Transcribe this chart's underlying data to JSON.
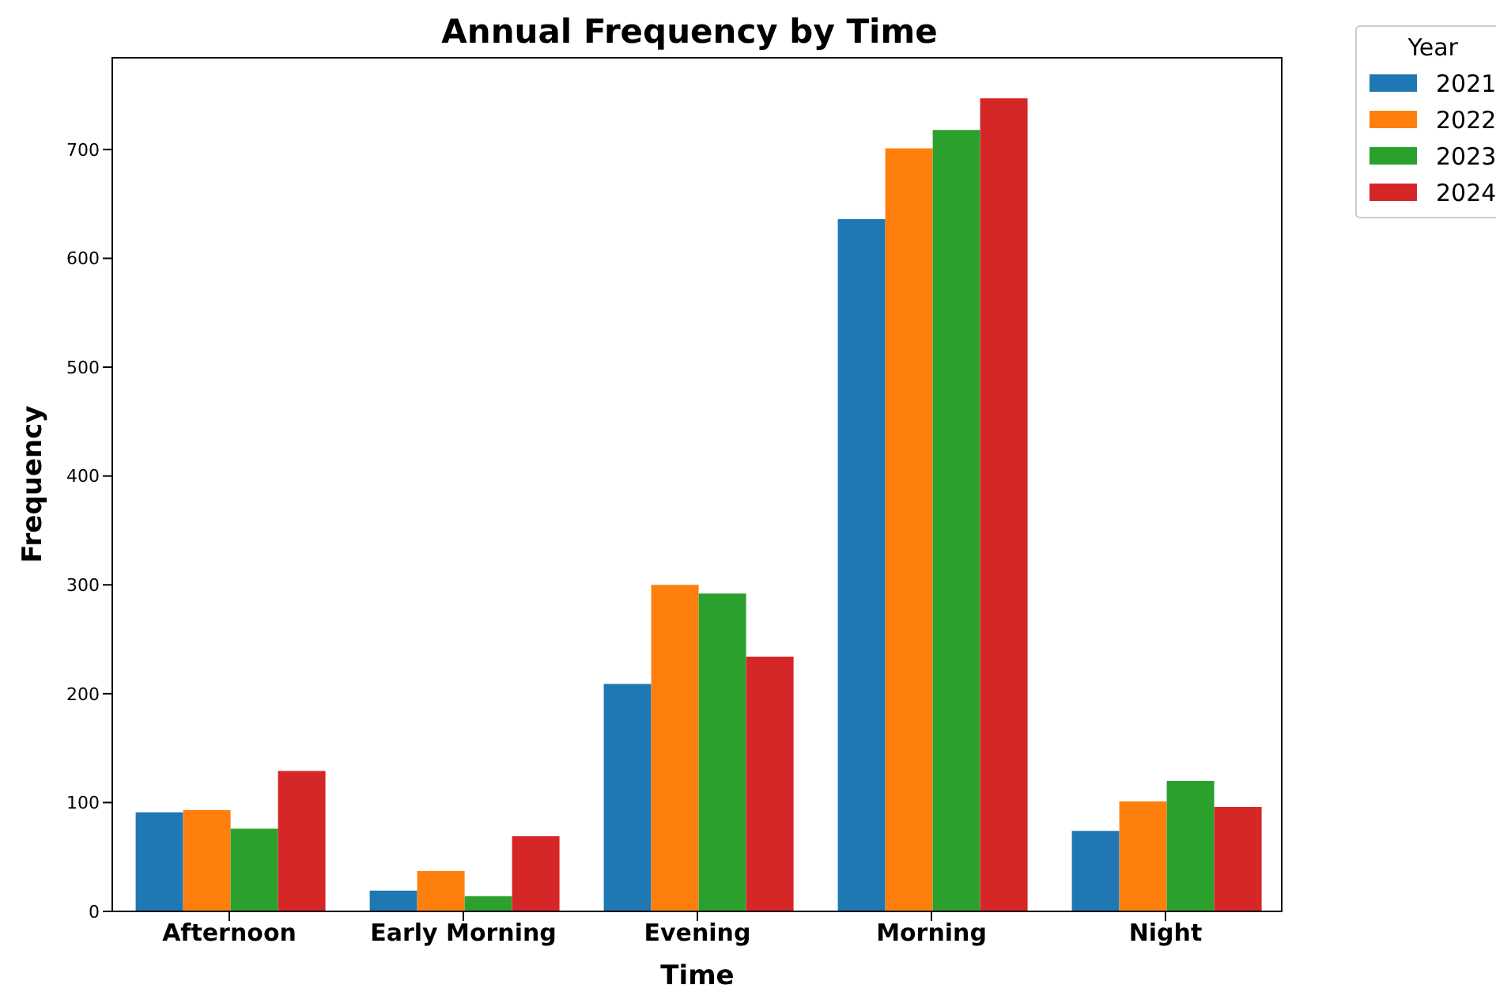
{
  "chart_data": {
    "type": "bar",
    "title": "Annual Frequency by Time",
    "xlabel": "Time",
    "ylabel": "Frequency",
    "legend_title": "Year",
    "categories": [
      "Afternoon",
      "Early Morning",
      "Evening",
      "Morning",
      "Night"
    ],
    "series": [
      {
        "name": "2021",
        "color": "#1f77b4",
        "values": [
          91,
          19,
          209,
          636,
          74
        ]
      },
      {
        "name": "2022",
        "color": "#ff7f0e",
        "values": [
          93,
          37,
          300,
          701,
          101
        ]
      },
      {
        "name": "2023",
        "color": "#2ca02c",
        "values": [
          76,
          14,
          292,
          718,
          120
        ]
      },
      {
        "name": "2024",
        "color": "#d62728",
        "values": [
          129,
          69,
          234,
          747,
          96
        ]
      }
    ],
    "ylim": [
      0,
      785
    ],
    "yticks": [
      0,
      100,
      200,
      300,
      400,
      500,
      600,
      700
    ],
    "grid": false,
    "legend": "top right"
  }
}
